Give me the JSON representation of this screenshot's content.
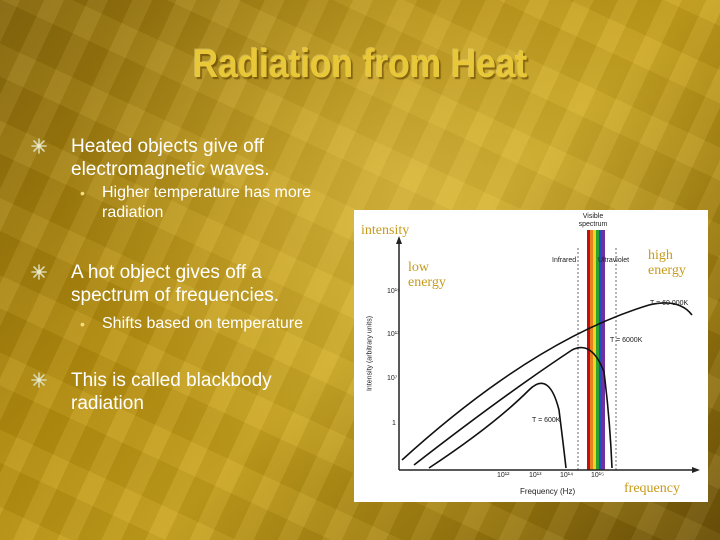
{
  "slide": {
    "title": "Radiation from Heat",
    "bullets": [
      {
        "line1": "Heated objects give off",
        "line2": "electromagnetic waves."
      },
      {
        "line1": "A hot object gives off a",
        "line2": "spectrum of frequencies."
      },
      {
        "line1": "This is called blackbody",
        "line2": "radiation"
      }
    ],
    "subbullets": [
      {
        "line1": "Higher temperature has more",
        "line2": "radiation"
      },
      {
        "line1": "Shifts based on temperature"
      }
    ]
  },
  "figure": {
    "overlay_labels": {
      "intensity": "intensity",
      "low1": "low",
      "low2": "energy",
      "high1": "high",
      "high2": "energy",
      "frequency": "frequency"
    },
    "inner_labels": {
      "visible1": "Visible",
      "visible2": "spectrum",
      "infrared": "Infrared",
      "ultraviolet": "Ultraviolet",
      "yaxis": "Intensity (arbitrary units)",
      "xaxis": "Frequency (Hz)",
      "t1": "T = 60 000K",
      "t2": "T = 6000K",
      "t3": "T = 600K",
      "yticks": [
        "10¹⁹",
        "10¹³",
        "10⁷",
        "1"
      ],
      "xticks": [
        "10¹²",
        "10¹³",
        "10¹⁴",
        "10¹⁵"
      ]
    }
  }
}
